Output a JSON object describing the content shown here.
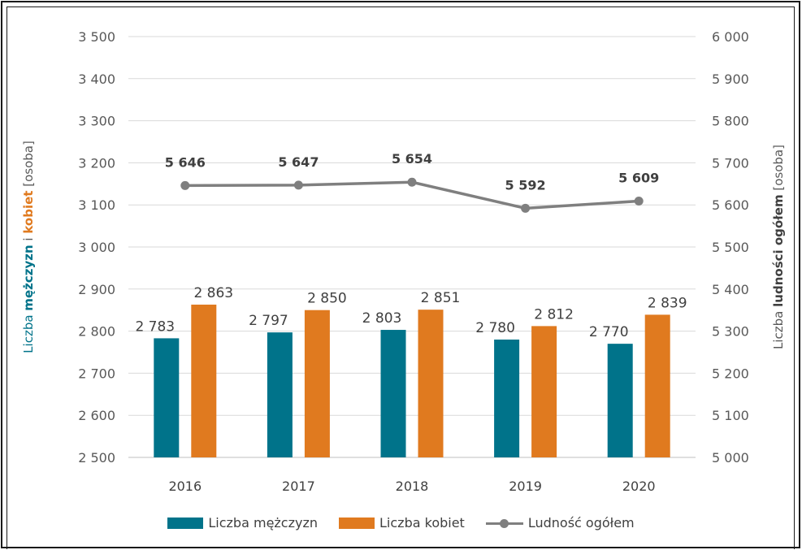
{
  "chart_data": {
    "type": "bar+line",
    "categories": [
      "2016",
      "2017",
      "2018",
      "2019",
      "2020"
    ],
    "series": [
      {
        "name": "Liczba mężczyzn",
        "type": "bar",
        "axis": "left",
        "values": [
          2783,
          2797,
          2803,
          2780,
          2770
        ],
        "labels": [
          "2 783",
          "2 797",
          "2 803",
          "2 780",
          "2 770"
        ],
        "color": "#00738a"
      },
      {
        "name": "Liczba kobiet",
        "type": "bar",
        "axis": "left",
        "values": [
          2863,
          2850,
          2851,
          2812,
          2839
        ],
        "labels": [
          "2 863",
          "2 850",
          "2 851",
          "2 812",
          "2 839"
        ],
        "color": "#e07a1f"
      },
      {
        "name": "Ludność ogółem",
        "type": "line",
        "axis": "right",
        "values": [
          5646,
          5647,
          5654,
          5592,
          5609
        ],
        "labels": [
          "5 646",
          "5 647",
          "5 654",
          "5 592",
          "5 609"
        ],
        "color": "#7f7f7f"
      }
    ],
    "y_left": {
      "min": 2500,
      "max": 3500,
      "ticks": [
        2500,
        2600,
        2700,
        2800,
        2900,
        3000,
        3100,
        3200,
        3300,
        3400,
        3500
      ],
      "tick_labels": [
        "2 500",
        "2 600",
        "2 700",
        "2 800",
        "2 900",
        "3 000",
        "3 100",
        "3 200",
        "3 300",
        "3 400",
        "3 500"
      ],
      "label_parts": [
        {
          "text": "Liczba ",
          "color": "#00738a",
          "bold": false
        },
        {
          "text": "mężczyzn",
          "color": "#00738a",
          "bold": true
        },
        {
          "text": " i ",
          "color": "#595959",
          "bold": false
        },
        {
          "text": "kobiet",
          "color": "#e07a1f",
          "bold": true
        },
        {
          "text": " [osoba]",
          "color": "#595959",
          "bold": false
        }
      ]
    },
    "y_right": {
      "min": 5000,
      "max": 6000,
      "ticks": [
        5000,
        5100,
        5200,
        5300,
        5400,
        5500,
        5600,
        5700,
        5800,
        5900,
        6000
      ],
      "tick_labels": [
        "5 000",
        "5 100",
        "5 200",
        "5 300",
        "5 400",
        "5 500",
        "5 600",
        "5 700",
        "5 800",
        "5 900",
        "6 000"
      ],
      "label_parts": [
        {
          "text": "Liczba ",
          "color": "#595959",
          "bold": false
        },
        {
          "text": "ludności ogółem",
          "color": "#404040",
          "bold": true
        },
        {
          "text": " [osoba]",
          "color": "#595959",
          "bold": false
        }
      ]
    },
    "grid": true,
    "legend": "bottom"
  }
}
